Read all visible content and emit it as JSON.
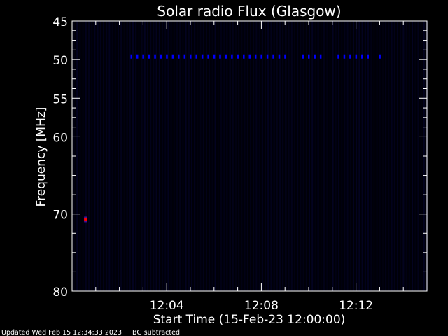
{
  "chart_data": {
    "type": "heatmap",
    "title": "Solar radio Flux (Glasgow)",
    "xlabel": "Start Time (15-Feb-23 12:00:00)",
    "ylabel": "Frequency [MHz]",
    "x_range": [
      "12:00:00",
      "12:15:00"
    ],
    "ylim": [
      45,
      80
    ],
    "y_inverted": true,
    "x_ticks": [
      "12:04",
      "12:08",
      "12:12"
    ],
    "y_ticks": [
      45,
      50,
      55,
      60,
      70,
      80
    ],
    "grid": false,
    "background_color": "#000008",
    "colors": {
      "weak": "#0000ff",
      "strong": "#ff0000"
    },
    "bursts": {
      "frequency": 49.6,
      "times": [
        "12:02:30",
        "12:02:45",
        "12:03:00",
        "12:03:15",
        "12:03:30",
        "12:03:45",
        "12:04:00",
        "12:04:15",
        "12:04:30",
        "12:04:45",
        "12:05:00",
        "12:05:15",
        "12:05:30",
        "12:05:45",
        "12:06:00",
        "12:06:15",
        "12:06:30",
        "12:06:45",
        "12:07:00",
        "12:07:15",
        "12:07:30",
        "12:07:45",
        "12:08:00",
        "12:08:15",
        "12:08:30",
        "12:08:45",
        "12:09:00",
        "12:09:45",
        "12:10:00",
        "12:10:15",
        "12:10:30",
        "12:11:15",
        "12:11:30",
        "12:11:45",
        "12:12:00",
        "12:12:15",
        "12:12:30",
        "12:13:00"
      ]
    },
    "hot_spot": {
      "time": "12:00:34",
      "frequency": 70.7
    }
  },
  "footer": {
    "updated": "Updated Wed Feb 15 12:34:33 2023",
    "note": "BG subtracted"
  }
}
